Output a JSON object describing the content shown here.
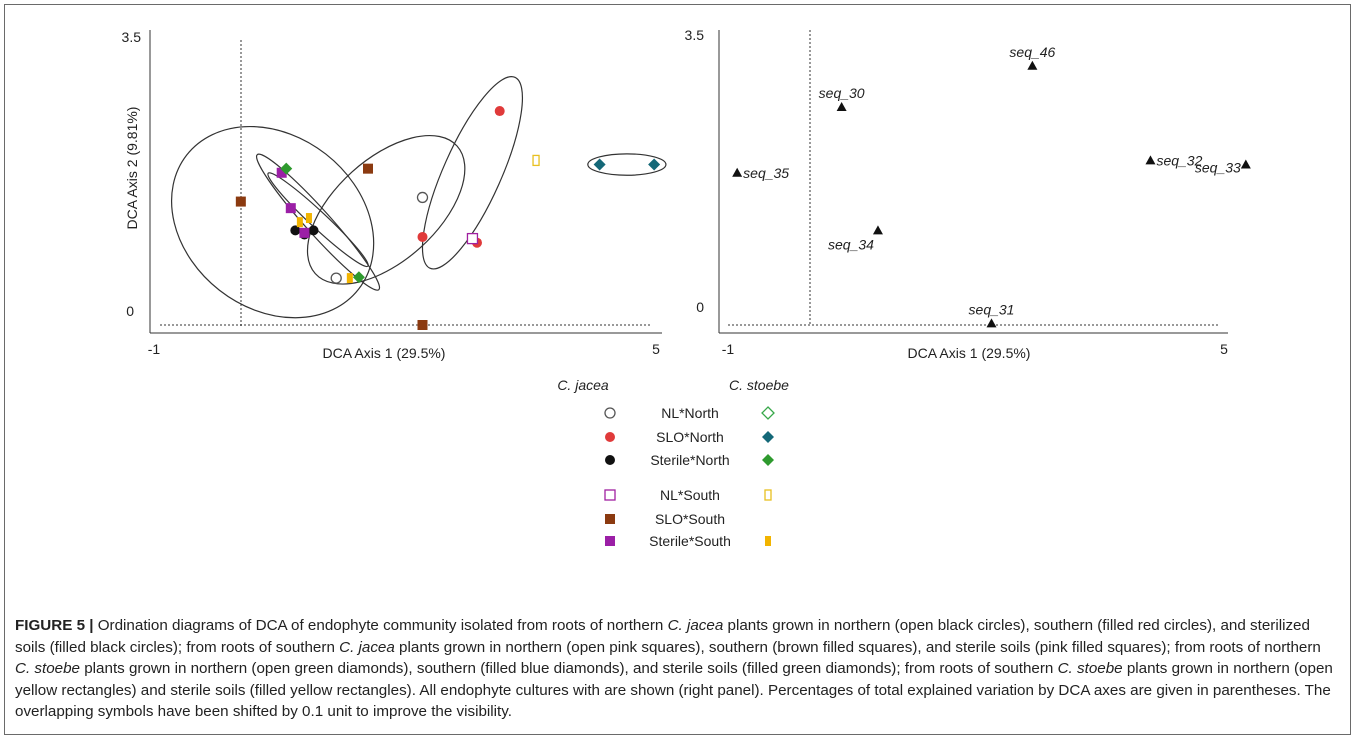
{
  "chart_data": [
    {
      "type": "scatter",
      "panel": "left",
      "xlabel": "DCA Axis 1 (29.5%)",
      "ylabel": "DCA Axis 2 (9.81%)",
      "xlim": [
        -1,
        5
      ],
      "ylim": [
        0,
        3.5
      ],
      "x_ticks": [
        "-1",
        "5"
      ],
      "y_ticks": [
        "3.5",
        "0"
      ],
      "series": [
        {
          "name": "NL*North",
          "group": "C. jacea",
          "marker": "circle-open",
          "color": "#555555",
          "points": [
            [
              2.0,
              1.55
            ],
            [
              1.05,
              0.57
            ]
          ]
        },
        {
          "name": "SLO*North",
          "group": "C. jacea",
          "marker": "circle",
          "color": "#e03a3a",
          "points": [
            [
              2.85,
              2.6
            ],
            [
              2.0,
              1.07
            ],
            [
              2.6,
              1.0
            ]
          ]
        },
        {
          "name": "Sterile*North",
          "group": "C. jacea",
          "marker": "circle",
          "color": "#111111",
          "points": [
            [
              0.6,
              1.15
            ],
            [
              0.7,
              1.1
            ],
            [
              0.8,
              1.15
            ]
          ]
        },
        {
          "name": "NL*South",
          "group": "C. jacea",
          "marker": "square-open",
          "color": "#a020a0",
          "points": [
            [
              2.55,
              1.05
            ]
          ]
        },
        {
          "name": "SLO*South",
          "group": "C. jacea",
          "marker": "square",
          "color": "#8b3a10",
          "points": [
            [
              0.0,
              1.5
            ],
            [
              1.4,
              1.9
            ],
            [
              2.0,
              0.0
            ]
          ]
        },
        {
          "name": "Sterile*South",
          "group": "C. jacea",
          "marker": "square",
          "color": "#9b1fa6",
          "points": [
            [
              0.45,
              1.85
            ],
            [
              0.55,
              1.42
            ],
            [
              0.7,
              1.12
            ]
          ]
        },
        {
          "name": "NL*North",
          "group": "C. stoebe",
          "marker": "diamond-open",
          "color": "#38a84a",
          "points": []
        },
        {
          "name": "SLO*North",
          "group": "C. stoebe",
          "marker": "diamond",
          "color": "#146878",
          "points": [
            [
              3.95,
              1.95
            ],
            [
              4.55,
              1.95
            ]
          ]
        },
        {
          "name": "Sterile*North",
          "group": "C. stoebe",
          "marker": "diamond",
          "color": "#2e9a2e",
          "points": [
            [
              0.5,
              1.9
            ],
            [
              1.3,
              0.58
            ]
          ]
        },
        {
          "name": "NL*South",
          "group": "C. stoebe",
          "marker": "rect-open",
          "color": "#e8c020",
          "points": [
            [
              3.25,
              2.0
            ]
          ]
        },
        {
          "name": "Sterile*South",
          "group": "C. stoebe",
          "marker": "rect",
          "color": "#f2b400",
          "points": [
            [
              0.65,
              1.25
            ],
            [
              0.75,
              1.3
            ],
            [
              1.2,
              0.57
            ]
          ]
        }
      ],
      "ellipses": [
        {
          "cx": 0.35,
          "cy": 1.25,
          "rx": 1.2,
          "ry": 1.05,
          "rotate": 38
        },
        {
          "cx": 1.6,
          "cy": 1.4,
          "rx": 1.05,
          "ry": 0.62,
          "rotate": -42
        },
        {
          "cx": 2.55,
          "cy": 1.85,
          "rx": 1.15,
          "ry": 0.35,
          "rotate": -66
        },
        {
          "cx": 0.85,
          "cy": 1.25,
          "rx": 1.0,
          "ry": 0.15,
          "rotate": 48
        },
        {
          "cx": 0.85,
          "cy": 1.28,
          "rx": 0.75,
          "ry": 0.1,
          "rotate": 43
        },
        {
          "cx": 4.25,
          "cy": 1.95,
          "rx": 0.43,
          "ry": 0.13,
          "rotate": 0
        }
      ]
    },
    {
      "type": "scatter",
      "panel": "right",
      "xlabel": "DCA Axis 1 (29.5%)",
      "xlim": [
        -1,
        5
      ],
      "ylim": [
        0,
        3.5
      ],
      "x_ticks": [
        "-1",
        "5"
      ],
      "y_ticks": [
        "3.5",
        "0"
      ],
      "points": [
        {
          "label": "seq_46",
          "x": 2.45,
          "y": 3.15,
          "label_pos": "above"
        },
        {
          "label": "seq_30",
          "x": 0.35,
          "y": 2.65,
          "label_pos": "above"
        },
        {
          "label": "seq_35",
          "x": -0.8,
          "y": 1.85,
          "label_pos": "right"
        },
        {
          "label": "seq_32",
          "x": 3.75,
          "y": 2.0,
          "label_pos": "right"
        },
        {
          "label": "seq_33",
          "x": 4.8,
          "y": 1.95,
          "label_pos": "left"
        },
        {
          "label": "seq_34",
          "x": 0.75,
          "y": 1.15,
          "label_pos": "below"
        },
        {
          "label": "seq_31",
          "x": 2.0,
          "y": 0.02,
          "label_pos": "above"
        }
      ]
    }
  ],
  "legend": {
    "col1_header": "C. jacea",
    "col2_header": "C. stoebe",
    "rows": [
      {
        "label": "NL*North",
        "m1": "circle-open",
        "c1": "#555555",
        "m2": "diamond-open",
        "c2": "#38a84a"
      },
      {
        "label": "SLO*North",
        "m1": "circle",
        "c1": "#e03a3a",
        "m2": "diamond",
        "c2": "#146878"
      },
      {
        "label": "Sterile*North",
        "m1": "circle",
        "c1": "#111111",
        "m2": "diamond",
        "c2": "#2e9a2e"
      },
      {
        "label": "NL*South",
        "m1": "square-open",
        "c1": "#a020a0",
        "m2": "rect-open",
        "c2": "#e8c020"
      },
      {
        "label": "SLO*South",
        "m1": "square",
        "c1": "#8b3a10",
        "m2": "",
        "c2": ""
      },
      {
        "label": "Sterile*South",
        "m1": "square",
        "c1": "#9b1fa6",
        "m2": "rect",
        "c2": "#f2b400"
      }
    ]
  },
  "caption": {
    "label": "FIGURE 5 |",
    "p1": " Ordination diagrams of DCA of endophyte community isolated from roots of northern ",
    "s1": "C. jacea",
    "p2": " plants grown in northern (open black circles), southern (filled red circles), and sterilized soils (filled black circles); from roots of southern ",
    "s2": "C. jacea",
    "p3": " plants grown in northern (open pink squares), southern (brown filled squares), and sterile soils (pink filled squares); from roots of northern ",
    "s3": "C. stoebe",
    "p4": " plants grown in northern (open green diamonds), southern (filled blue diamonds), and sterile soils (filled green diamonds); from roots of southern ",
    "s4": "C. stoebe",
    "p5": " plants grown in northern (open yellow rectangles) and sterile soils (filled yellow rectangles). All endophyte cultures with are shown (right panel). Percentages of total explained variation by DCA axes are given in parentheses. The overlapping symbols have been shifted by 0.1 unit to improve the visibility."
  }
}
